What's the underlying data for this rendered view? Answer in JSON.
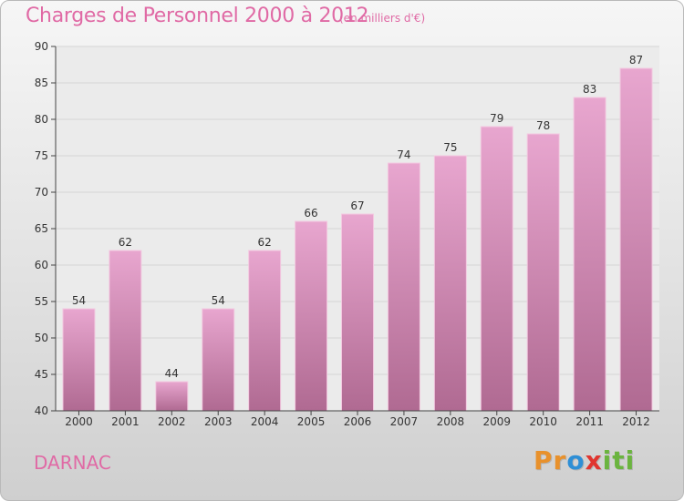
{
  "header": {
    "title": "Charges de Personnel 2000 à 2012",
    "subtitle": "(en milliers d'€)"
  },
  "footer": {
    "commune": "DARNAC",
    "brand_parts": [
      "Pr",
      "o",
      "x",
      "iti"
    ]
  },
  "colors": {
    "bar_top": "#e8a6cf",
    "bar_bottom": "#b06a92",
    "text_accent": "#e06aa5"
  },
  "chart_data": {
    "type": "bar",
    "title": "Charges de Personnel 2000 à 2012",
    "subtitle": "(en milliers d'€)",
    "categories": [
      "2000",
      "2001",
      "2002",
      "2003",
      "2004",
      "2005",
      "2006",
      "2007",
      "2008",
      "2009",
      "2010",
      "2011",
      "2012"
    ],
    "values": [
      54,
      62,
      44,
      54,
      62,
      66,
      67,
      74,
      75,
      79,
      78,
      83,
      87
    ],
    "ylim": [
      40,
      90
    ],
    "yticks": [
      40,
      45,
      50,
      55,
      60,
      65,
      70,
      75,
      80,
      85,
      90
    ],
    "grid": true,
    "legend": "none"
  }
}
